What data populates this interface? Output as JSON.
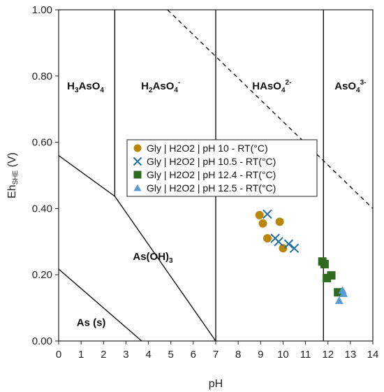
{
  "chart_data": {
    "type": "scatter",
    "title": "",
    "xlabel": "pH",
    "ylabel": {
      "main": "Eh",
      "sub": "SHE",
      "unit": " (V)"
    },
    "xlim": [
      0,
      14
    ],
    "ylim": [
      0,
      1.0
    ],
    "x_ticks": [
      "0",
      "1",
      "2",
      "3",
      "4",
      "5",
      "6",
      "7",
      "8",
      "9",
      "10",
      "11",
      "12",
      "13",
      "14"
    ],
    "y_ticks": [
      "0.00",
      "0.20",
      "0.40",
      "0.60",
      "0.80",
      "1.00"
    ],
    "grid": false,
    "regions": [
      {
        "parts": [
          {
            "t": "H"
          },
          {
            "t": "3",
            "s": "sub"
          },
          {
            "t": "AsO"
          },
          {
            "t": "4",
            "s": "sub"
          }
        ],
        "x": 1.2,
        "y": 0.76
      },
      {
        "parts": [
          {
            "t": "H"
          },
          {
            "t": "2",
            "s": "sub"
          },
          {
            "t": "AsO"
          },
          {
            "t": "4",
            "s": "sub"
          },
          {
            "t": "-",
            "s": "sup"
          }
        ],
        "x": 4.55,
        "y": 0.76
      },
      {
        "parts": [
          {
            "t": "HAsO"
          },
          {
            "t": "4",
            "s": "sub"
          },
          {
            "t": "2-",
            "s": "sup"
          }
        ],
        "x": 9.5,
        "y": 0.76
      },
      {
        "parts": [
          {
            "t": "AsO"
          },
          {
            "t": "4",
            "s": "sub"
          },
          {
            "t": "3-",
            "s": "sup"
          }
        ],
        "x": 13.0,
        "y": 0.76
      },
      {
        "parts": [
          {
            "t": "As(OH)"
          },
          {
            "t": "3",
            "s": "sub"
          }
        ],
        "x": 4.2,
        "y": 0.245
      },
      {
        "parts": [
          {
            "t": "As (s)"
          }
        ],
        "x": 1.45,
        "y": 0.045
      }
    ],
    "boundaries": [
      {
        "style": "solid",
        "points": [
          [
            2.5,
            0.437
          ],
          [
            2.5,
            1.0
          ]
        ]
      },
      {
        "style": "solid",
        "points": [
          [
            7.0,
            0.0
          ],
          [
            7.0,
            1.0
          ]
        ]
      },
      {
        "style": "solid",
        "points": [
          [
            11.8,
            0.0
          ],
          [
            11.8,
            1.0
          ]
        ]
      },
      {
        "style": "solid",
        "points": [
          [
            0,
            0.56
          ],
          [
            2.5,
            0.437
          ],
          [
            7.0,
            0.0
          ]
        ]
      },
      {
        "style": "solid",
        "points": [
          [
            0,
            0.217
          ],
          [
            3.7,
            0.0
          ]
        ]
      },
      {
        "style": "dashed",
        "points": [
          [
            4.85,
            1.0
          ],
          [
            14.0,
            0.4
          ]
        ]
      }
    ],
    "series": [
      {
        "name": "Gly | H2O2 | pH 10 - RT(°C)",
        "marker": "circle",
        "color": "#b8860b",
        "points": [
          [
            8.95,
            0.38
          ],
          [
            9.1,
            0.355
          ],
          [
            9.3,
            0.31
          ],
          [
            9.85,
            0.36
          ],
          [
            10.0,
            0.28
          ]
        ]
      },
      {
        "name": "Gly | H2O2 | pH 10.5 - RT(°C)",
        "marker": "x",
        "color": "#1f6f9f",
        "points": [
          [
            9.3,
            0.383
          ],
          [
            9.65,
            0.31
          ],
          [
            9.8,
            0.3
          ],
          [
            10.25,
            0.293
          ],
          [
            10.5,
            0.28
          ]
        ]
      },
      {
        "name": "Gly | H2O2 | pH 12.4 - RT(°C)",
        "marker": "square",
        "color": "#2e6b1f",
        "points": [
          [
            11.75,
            0.24
          ],
          [
            11.85,
            0.232
          ],
          [
            11.95,
            0.19
          ],
          [
            12.15,
            0.198
          ],
          [
            12.45,
            0.147
          ]
        ]
      },
      {
        "name": "Gly | H2O2 | pH 12.5 - RT(°C)",
        "marker": "triangle",
        "color": "#5b9bd5",
        "points": [
          [
            12.5,
            0.122
          ],
          [
            12.65,
            0.153
          ],
          [
            12.7,
            0.143
          ]
        ]
      }
    ],
    "legend": "center-right"
  }
}
